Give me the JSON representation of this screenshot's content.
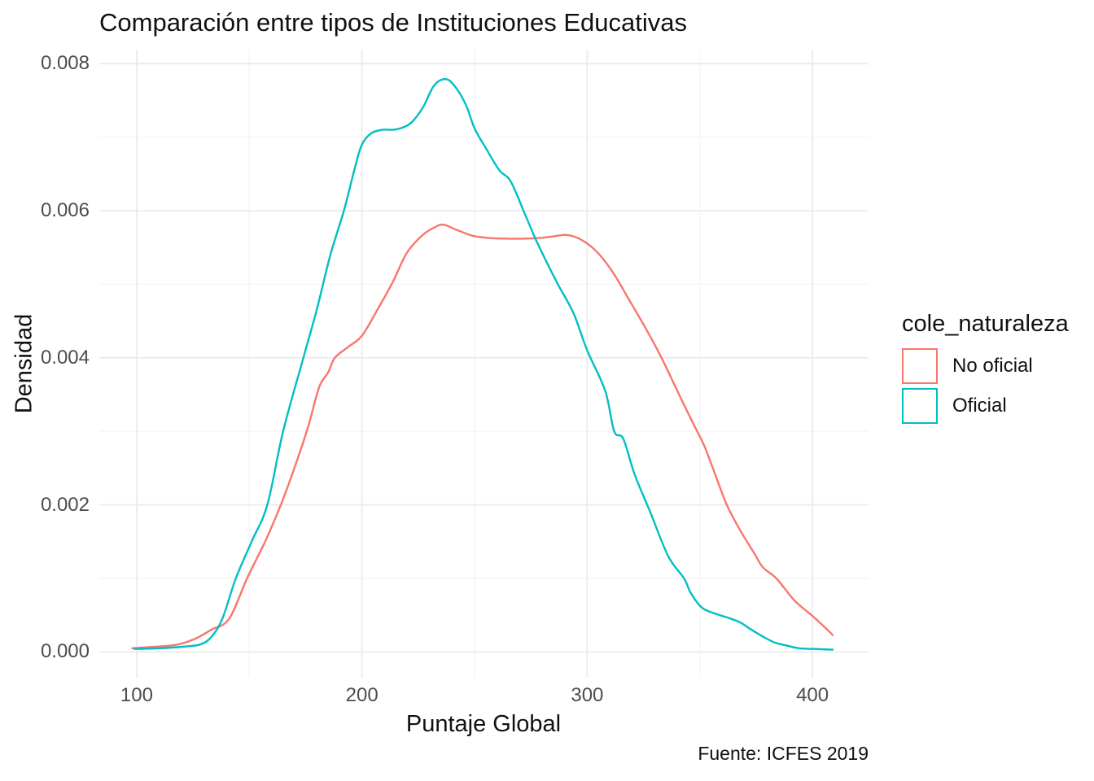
{
  "title": "Comparación entre tipos de Instituciones Educativas",
  "caption": "Fuente: ICFES 2019",
  "colors": {
    "background": "#FFFFFF",
    "grid_major": "#EBEBEB",
    "grid_minor": "#F2F2F2",
    "tick_label": "#4D4D4D",
    "text": "#111111",
    "no_oficial": "#F8766D",
    "oficial": "#00BFC4"
  },
  "chart_data": {
    "type": "line",
    "subtype": "density",
    "title": "Comparación entre tipos de Instituciones Educativas",
    "xlabel": "Puntaje Global",
    "ylabel": "Densidad",
    "caption": "Fuente: ICFES 2019",
    "xlim": [
      83.4,
      424.9
    ],
    "ylim": [
      -0.00035,
      0.00819
    ],
    "grid": true,
    "x_ticks": {
      "values": [
        100,
        200,
        300,
        400
      ],
      "labels": [
        "100",
        "200",
        "300",
        "400"
      ],
      "minor": [
        150,
        250,
        350
      ]
    },
    "y_ticks": {
      "values": [
        0,
        0.002,
        0.004,
        0.006,
        0.008
      ],
      "labels": [
        "0.000",
        "0.002",
        "0.004",
        "0.006",
        "0.008"
      ],
      "minor": [
        0.001,
        0.003,
        0.005,
        0.007
      ]
    },
    "legend": {
      "title": "cole_naturaleza",
      "position": "right",
      "entries": [
        {
          "label": "No oficial",
          "color": "#F8766D"
        },
        {
          "label": "Oficial",
          "color": "#00BFC4"
        }
      ]
    },
    "series": [
      {
        "name": "No oficial",
        "color": "#F8766D",
        "points": [
          [
            98,
            5e-05
          ],
          [
            108,
            7e-05
          ],
          [
            118,
            0.0001
          ],
          [
            126,
            0.00018
          ],
          [
            133,
            0.0003
          ],
          [
            141,
            0.00045
          ],
          [
            149,
            0.001
          ],
          [
            157,
            0.0015
          ],
          [
            164,
            0.002
          ],
          [
            170,
            0.0025
          ],
          [
            176,
            0.00305
          ],
          [
            181,
            0.0036
          ],
          [
            185,
            0.0038
          ],
          [
            188,
            0.004
          ],
          [
            194,
            0.00415
          ],
          [
            200,
            0.0043
          ],
          [
            207,
            0.00466
          ],
          [
            214,
            0.00505
          ],
          [
            220,
            0.00543
          ],
          [
            227,
            0.00567
          ],
          [
            232,
            0.00577
          ],
          [
            236,
            0.00581
          ],
          [
            242,
            0.00574
          ],
          [
            249,
            0.00566
          ],
          [
            256,
            0.00563
          ],
          [
            264,
            0.00562
          ],
          [
            272,
            0.00562
          ],
          [
            279,
            0.00563
          ],
          [
            285,
            0.00565
          ],
          [
            291,
            0.00567
          ],
          [
            297,
            0.00561
          ],
          [
            304,
            0.00545
          ],
          [
            311,
            0.00518
          ],
          [
            318,
            0.00482
          ],
          [
            326,
            0.0044
          ],
          [
            333,
            0.004
          ],
          [
            340,
            0.00355
          ],
          [
            347,
            0.00311
          ],
          [
            352,
            0.0028
          ],
          [
            357,
            0.0024
          ],
          [
            362,
            0.002
          ],
          [
            368,
            0.00165
          ],
          [
            374,
            0.00135
          ],
          [
            378,
            0.00115
          ],
          [
            384,
            0.001
          ],
          [
            392,
            0.0007
          ],
          [
            400,
            0.00049
          ],
          [
            405,
            0.00035
          ],
          [
            409,
            0.00023
          ]
        ]
      },
      {
        "name": "Oficial",
        "color": "#00BFC4",
        "points": [
          [
            99,
            4e-05
          ],
          [
            110,
            5e-05
          ],
          [
            120,
            7e-05
          ],
          [
            128,
            0.0001
          ],
          [
            133,
            0.0002
          ],
          [
            138,
            0.00045
          ],
          [
            144,
            0.001
          ],
          [
            151,
            0.0015
          ],
          [
            158,
            0.002
          ],
          [
            165,
            0.003
          ],
          [
            174,
            0.004
          ],
          [
            180,
            0.00466
          ],
          [
            186,
            0.0054
          ],
          [
            192,
            0.006
          ],
          [
            197,
            0.0066
          ],
          [
            200,
            0.0069
          ],
          [
            204,
            0.00705
          ],
          [
            209,
            0.0071
          ],
          [
            214,
            0.0071
          ],
          [
            218,
            0.00713
          ],
          [
            222,
            0.0072
          ],
          [
            227,
            0.0074
          ],
          [
            232,
            0.0077
          ],
          [
            237,
            0.00779
          ],
          [
            241,
            0.0077
          ],
          [
            246,
            0.00745
          ],
          [
            250,
            0.00712
          ],
          [
            255,
            0.00685
          ],
          [
            261,
            0.00655
          ],
          [
            266,
            0.0064
          ],
          [
            272,
            0.00598
          ],
          [
            277,
            0.00562
          ],
          [
            282,
            0.0053
          ],
          [
            287,
            0.005
          ],
          [
            294,
            0.0046
          ],
          [
            300,
            0.0041
          ],
          [
            308,
            0.00355
          ],
          [
            312,
            0.003
          ],
          [
            316,
            0.0029
          ],
          [
            321,
            0.00242
          ],
          [
            328,
            0.0019
          ],
          [
            336,
            0.0013
          ],
          [
            343,
            0.001
          ],
          [
            346,
            0.0008
          ],
          [
            351,
            0.0006
          ],
          [
            357,
            0.00052
          ],
          [
            363,
            0.00046
          ],
          [
            368,
            0.0004
          ],
          [
            373,
            0.0003
          ],
          [
            378,
            0.00021
          ],
          [
            383,
            0.00013
          ],
          [
            388,
            9e-05
          ],
          [
            394,
            5e-05
          ],
          [
            401,
            4e-05
          ],
          [
            409,
            3e-05
          ]
        ]
      }
    ]
  }
}
